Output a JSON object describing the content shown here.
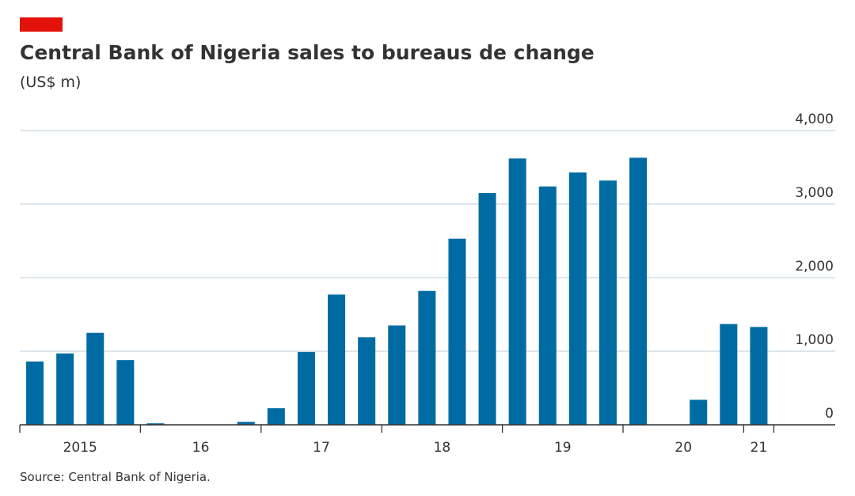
{
  "chart_data": {
    "type": "bar",
    "title": "Central Bank of Nigeria sales to bureaus de change",
    "subtitle": "(US$ m)",
    "source": "Source: Central Bank of Nigeria.",
    "groups": [
      "2015",
      "16",
      "17",
      "18",
      "19",
      "20",
      "21"
    ],
    "quarters_per_group": 4,
    "values": [
      860,
      970,
      1250,
      880,
      20,
      0,
      0,
      40,
      225,
      990,
      1770,
      1190,
      1350,
      1820,
      2530,
      3150,
      3620,
      3240,
      3430,
      3320,
      3630,
      0,
      340,
      1370,
      1330
    ],
    "color": "#006ba2",
    "ylim": [
      0,
      4000
    ],
    "yticks": [
      0,
      {
        "value": 1000,
        "label": "1,000"
      },
      {
        "value": 2000,
        "label": "2,000"
      },
      {
        "value": 3000,
        "label": "3,000"
      },
      {
        "value": 4000,
        "label": "4,000"
      }
    ],
    "grid": true
  }
}
